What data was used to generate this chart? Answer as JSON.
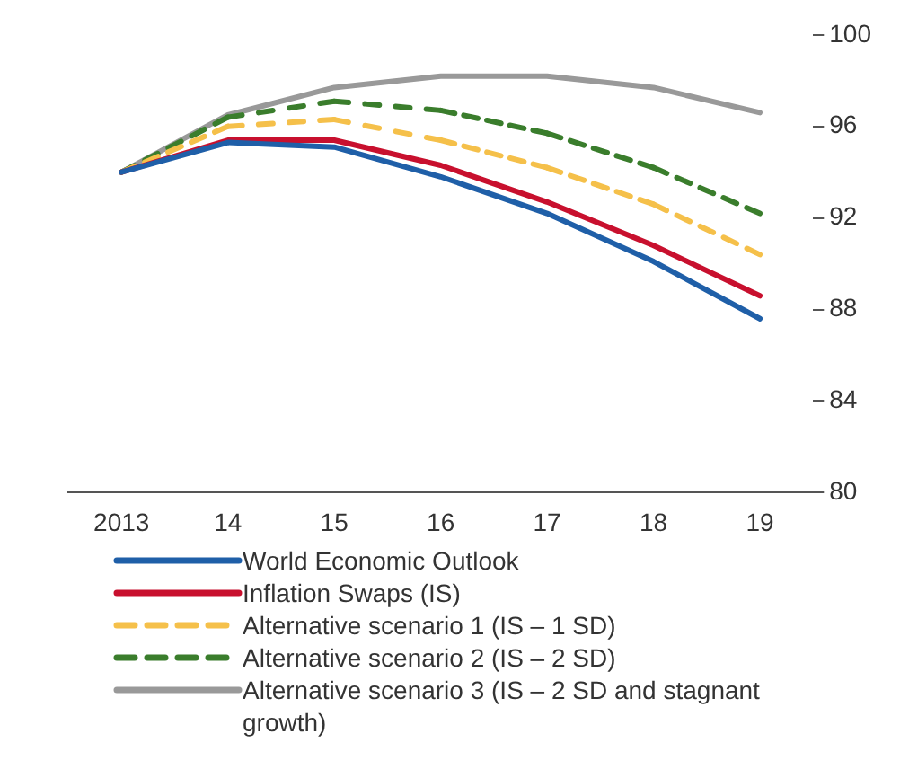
{
  "chart_data": {
    "type": "line",
    "categories": [
      "2013",
      "14",
      "15",
      "16",
      "17",
      "18",
      "19"
    ],
    "ylim": [
      80,
      100
    ],
    "yticks": [
      80,
      84,
      88,
      92,
      96,
      100
    ],
    "grid": false,
    "legend": "bottom",
    "marker": "none",
    "series": [
      {
        "name": "World Economic Outlook",
        "color": "#1f5fa8",
        "values": [
          94,
          95.3,
          95.1,
          93.8,
          92.2,
          90.1,
          87.6
        ]
      },
      {
        "name": "Inflation Swaps (IS)",
        "color": "#c8102e",
        "values": [
          94,
          95.4,
          95.4,
          94.3,
          92.7,
          90.8,
          88.6
        ]
      },
      {
        "name": "Alternative scenario 1 (IS – 1 SD)",
        "color": "#f5c04a",
        "line_style": "dashed",
        "values": [
          94,
          96.0,
          96.3,
          95.4,
          94.2,
          92.6,
          90.4
        ]
      },
      {
        "name": "Alternative scenario 2 (IS – 2 SD)",
        "color": "#3a7d2c",
        "line_style": "dashed",
        "values": [
          94,
          96.4,
          97.1,
          96.7,
          95.7,
          94.2,
          92.2
        ]
      },
      {
        "name": "Alternative scenario 3 (IS – 2 SD and stagnant growth)",
        "color": "#999999",
        "values": [
          94,
          96.5,
          97.7,
          98.2,
          98.2,
          97.7,
          96.6
        ]
      }
    ]
  }
}
